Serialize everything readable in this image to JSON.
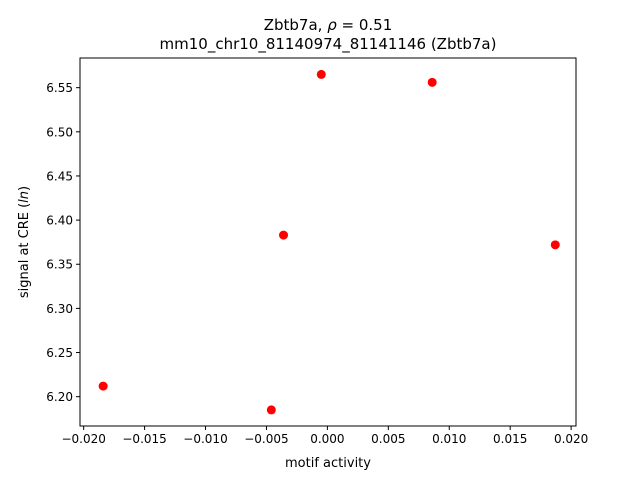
{
  "chart_data": {
    "type": "scatter",
    "title_line1_prefix": "Zbtb7a, ",
    "title_rho": "ρ",
    "title_line1_suffix": " = 0.51",
    "title_line2": "mm10_chr10_81140974_81141146 (Zbtb7a)",
    "xlabel": "motif activity",
    "ylabel_prefix": "signal at CRE (",
    "ylabel_italic": "ln",
    "ylabel_suffix": ")",
    "xlim": [
      -0.0203,
      0.0204
    ],
    "ylim": [
      6.1668,
      6.5836
    ],
    "xticks": [
      -0.02,
      -0.015,
      -0.01,
      -0.005,
      0.0,
      0.005,
      0.01,
      0.015,
      0.02
    ],
    "xtick_labels": [
      "−0.020",
      "−0.015",
      "−0.010",
      "−0.005",
      "0.000",
      "0.005",
      "0.010",
      "0.015",
      "0.020"
    ],
    "yticks": [
      6.2,
      6.25,
      6.3,
      6.35,
      6.4,
      6.45,
      6.5,
      6.55
    ],
    "ytick_labels": [
      "6.20",
      "6.25",
      "6.30",
      "6.35",
      "6.40",
      "6.45",
      "6.50",
      "6.55"
    ],
    "grid": false,
    "marker_color": "#ff0000",
    "points": [
      {
        "x": -0.0184,
        "y": 6.212
      },
      {
        "x": -0.0046,
        "y": 6.185
      },
      {
        "x": -0.0036,
        "y": 6.383
      },
      {
        "x": -0.0005,
        "y": 6.565
      },
      {
        "x": 0.0086,
        "y": 6.556
      },
      {
        "x": 0.0187,
        "y": 6.372
      }
    ]
  }
}
